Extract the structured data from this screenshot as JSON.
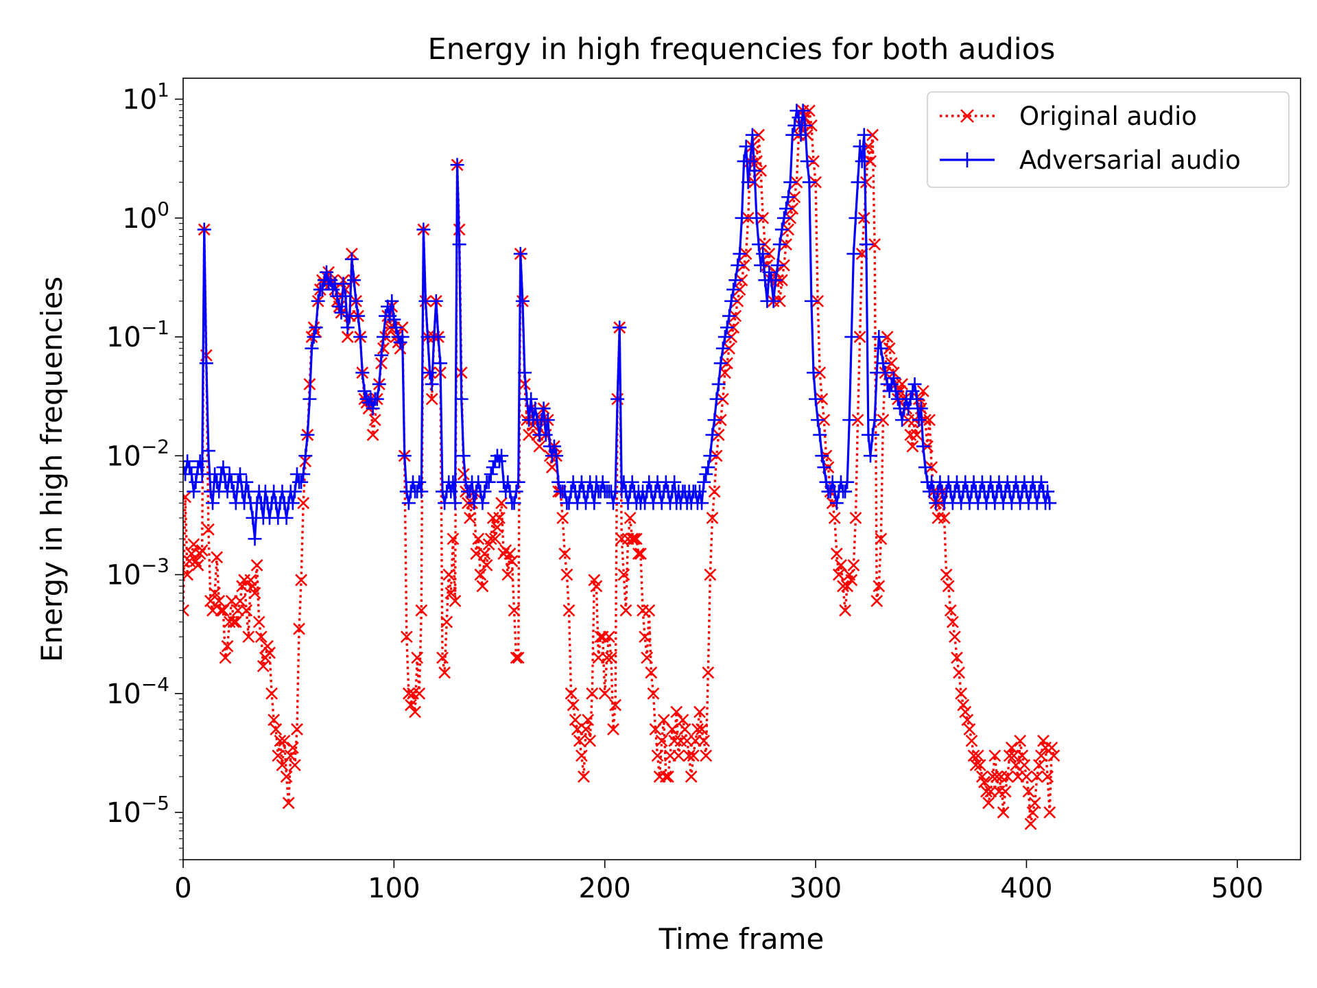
{
  "chart_data": {
    "type": "line",
    "title": "Energy in high frequencies for both audios",
    "xlabel": "Time frame",
    "ylabel": "Energy in high frequencies",
    "xlim": [
      0,
      530
    ],
    "ylim": [
      4e-06,
      15
    ],
    "yscale": "log",
    "grid": false,
    "legend_position": "top-right",
    "x_ticks": [
      0,
      100,
      200,
      300,
      400,
      500
    ],
    "x_tick_labels": [
      "0",
      "100",
      "200",
      "300",
      "400",
      "500"
    ],
    "y_ticks": [
      1e-05,
      0.0001,
      0.001,
      0.01,
      0.1,
      1,
      10
    ],
    "y_tick_labels": [
      {
        "base": "10",
        "exp": "−5"
      },
      {
        "base": "10",
        "exp": "−4"
      },
      {
        "base": "10",
        "exp": "−3"
      },
      {
        "base": "10",
        "exp": "−2"
      },
      {
        "base": "10",
        "exp": "−1"
      },
      {
        "base": "10",
        "exp": "0"
      },
      {
        "base": "10",
        "exp": "1"
      }
    ],
    "x_start": 0,
    "x_step": 1,
    "series": [
      {
        "name": "Original audio",
        "color": "#ff0000",
        "line_style": "dotted",
        "marker": "x",
        "values": [
          0.0005,
          0.0045,
          0.001,
          0.0013,
          0.0015,
          0.0018,
          0.0013,
          0.0012,
          0.0015,
          0.0016,
          0.8,
          0.07,
          0.0024,
          0.0006,
          0.0005,
          0.0007,
          0.0014,
          0.0006,
          0.0005,
          0.0005,
          0.0002,
          0.00025,
          0.0004,
          0.0006,
          0.0004,
          0.0004,
          0.0005,
          0.0006,
          0.0008,
          0.0009,
          0.0005,
          0.0003,
          0.0009,
          0.0008,
          0.0007,
          0.0012,
          0.0004,
          0.0003,
          0.00017,
          0.0002,
          0.00025,
          0.00022,
          0.0001,
          6e-05,
          5e-05,
          3e-05,
          4e-05,
          2.5e-05,
          4e-05,
          2e-05,
          1.2e-05,
          3e-05,
          3.5e-05,
          2.5e-05,
          5e-05,
          0.00035,
          0.0009,
          0.004,
          0.009,
          0.015,
          0.04,
          0.1,
          0.12,
          0.11,
          0.2,
          0.25,
          0.3,
          0.28,
          0.32,
          0.35,
          0.28,
          0.3,
          0.25,
          0.2,
          0.18,
          0.16,
          0.3,
          0.25,
          0.1,
          0.15,
          0.5,
          0.3,
          0.2,
          0.15,
          0.1,
          0.05,
          0.03,
          0.028,
          0.025,
          0.03,
          0.015,
          0.02,
          0.03,
          0.04,
          0.06,
          0.08,
          0.1,
          0.15,
          0.12,
          0.18,
          0.12,
          0.1,
          0.09,
          0.08,
          0.12,
          0.01,
          0.0003,
          0.0001,
          8e-05,
          0.0001,
          7e-05,
          0.0002,
          0.0001,
          0.0005,
          0.8,
          0.2,
          0.1,
          0.05,
          0.03,
          0.1,
          0.2,
          0.1,
          0.05,
          0.0002,
          0.00015,
          0.0004,
          0.001,
          0.0007,
          0.002,
          0.0006,
          2.8,
          0.8,
          0.05,
          0.007,
          0.005,
          0.004,
          0.003,
          0.004,
          0.005,
          0.0015,
          0.002,
          0.001,
          0.0008,
          0.0015,
          0.0012,
          0.0018,
          0.002,
          0.003,
          0.002,
          0.0025,
          0.003,
          0.004,
          0.0015,
          0.0016,
          0.001,
          0.0015,
          0.0013,
          0.0005,
          0.0002,
          0.0002,
          0.5,
          0.2,
          0.04,
          0.02,
          0.015,
          0.025,
          0.018,
          0.02,
          0.015,
          0.012,
          0.02,
          0.025,
          0.015,
          0.02,
          0.01,
          0.008,
          0.012,
          0.01,
          0.005,
          0.005,
          0.003,
          0.0015,
          0.001,
          0.0005,
          0.0001,
          8e-05,
          6e-05,
          5e-05,
          4e-05,
          3e-05,
          2e-05,
          5e-05,
          6e-05,
          4e-05,
          0.0001,
          0.0009,
          0.0008,
          0.0002,
          0.0003,
          0.0003,
          0.0001,
          0.0002,
          0.0003,
          0.0002,
          5e-05,
          8e-05,
          0.03,
          0.12,
          0.002,
          0.001,
          0.0005,
          0.002,
          0.003,
          0.002,
          0.002,
          0.002,
          0.0015,
          0.0015,
          0.0005,
          0.0003,
          0.0002,
          0.0005,
          0.00015,
          0.0001,
          5e-05,
          3e-05,
          2e-05,
          4e-05,
          6e-05,
          2e-05,
          2e-05,
          3e-05,
          5e-05,
          4e-05,
          7e-05,
          3e-05,
          4e-05,
          6e-05,
          5e-05,
          4e-05,
          3e-05,
          2e-05,
          3e-05,
          4e-05,
          5e-05,
          7e-05,
          5e-05,
          4e-05,
          3e-05,
          0.00015,
          0.001,
          0.003,
          0.005,
          0.01,
          0.015,
          0.02,
          0.03,
          0.05,
          0.06,
          0.08,
          0.1,
          0.12,
          0.15,
          0.2,
          0.25,
          0.3,
          0.4,
          0.5,
          1,
          3,
          4,
          2,
          3,
          5,
          2.5,
          1,
          0.6,
          0.4,
          0.5,
          0.3,
          0.2,
          0.35,
          0.3,
          0.2,
          0.3,
          0.4,
          0.6,
          0.8,
          1,
          1.2,
          1.5,
          2,
          5,
          6,
          8,
          7,
          5,
          8,
          6,
          3,
          2,
          0.2,
          0.05,
          0.03,
          0.02,
          0.01,
          0.008,
          0.005,
          0.004,
          0.003,
          0.0015,
          0.001,
          0.0012,
          0.0008,
          0.0005,
          0.0008,
          0.001,
          0.0009,
          0.0012,
          0.003,
          0.02,
          0.1,
          0.5,
          1,
          2,
          4,
          3,
          5,
          0.6,
          0.0006,
          0.0008,
          0.002,
          0.02,
          0.05,
          0.1,
          0.08,
          0.06,
          0.05,
          0.04,
          0.03,
          0.035,
          0.04,
          0.03,
          0.025,
          0.02,
          0.015,
          0.012,
          0.02,
          0.015,
          0.03,
          0.025,
          0.035,
          0.02,
          0.012,
          0.02,
          0.008,
          0.005,
          0.004,
          0.003,
          0.004,
          0.005,
          0.003,
          0.001,
          0.0008,
          0.0005,
          0.0004,
          0.0003,
          0.0002,
          0.00015,
          0.0001,
          8e-05,
          7e-05,
          6e-05,
          5e-05,
          4e-05,
          3e-05,
          2.5e-05,
          3e-05,
          2.5e-05,
          2e-05,
          1.8e-05,
          1.5e-05,
          1.2e-05,
          1.5e-05,
          2e-05,
          3e-05,
          2e-05,
          1.5e-05,
          2e-05,
          1e-05,
          1.5e-05,
          2e-05,
          3e-05,
          3.5e-05,
          3e-05,
          2.5e-05,
          2e-05,
          4e-05,
          3e-05,
          2.5e-05,
          2e-05,
          1.5e-05,
          8e-06,
          1e-05,
          1.2e-05,
          2e-05,
          2.5e-05,
          3e-05,
          4e-05,
          3.5e-05,
          2e-05,
          1e-05,
          3.5e-05,
          3e-05
        ]
      },
      {
        "name": "Adversarial audio",
        "color": "#0000ff",
        "line_style": "solid",
        "marker": "+",
        "values": [
          0.008,
          0.007,
          0.009,
          0.008,
          0.007,
          0.005,
          0.006,
          0.008,
          0.009,
          0.007,
          0.8,
          0.06,
          0.011,
          0.005,
          0.004,
          0.007,
          0.006,
          0.005,
          0.007,
          0.008,
          0.006,
          0.005,
          0.007,
          0.006,
          0.005,
          0.004,
          0.006,
          0.007,
          0.005,
          0.004,
          0.006,
          0.005,
          0.004,
          0.003,
          0.002,
          0.004,
          0.005,
          0.004,
          0.003,
          0.005,
          0.004,
          0.003,
          0.004,
          0.005,
          0.004,
          0.003,
          0.004,
          0.005,
          0.004,
          0.003,
          0.004,
          0.005,
          0.004,
          0.005,
          0.007,
          0.006,
          0.006,
          0.007,
          0.01,
          0.015,
          0.03,
          0.08,
          0.1,
          0.12,
          0.2,
          0.25,
          0.25,
          0.3,
          0.35,
          0.28,
          0.3,
          0.25,
          0.28,
          0.22,
          0.18,
          0.16,
          0.28,
          0.22,
          0.12,
          0.15,
          0.45,
          0.3,
          0.2,
          0.15,
          0.1,
          0.05,
          0.035,
          0.03,
          0.028,
          0.03,
          0.025,
          0.03,
          0.03,
          0.04,
          0.07,
          0.1,
          0.15,
          0.18,
          0.15,
          0.2,
          0.14,
          0.12,
          0.1,
          0.09,
          0.1,
          0.01,
          0.005,
          0.004,
          0.005,
          0.006,
          0.005,
          0.005,
          0.006,
          0.005,
          0.8,
          0.2,
          0.1,
          0.05,
          0.04,
          0.1,
          0.2,
          0.1,
          0.06,
          0.005,
          0.004,
          0.005,
          0.006,
          0.005,
          0.006,
          0.004,
          2.8,
          0.6,
          0.03,
          0.01,
          0.006,
          0.005,
          0.005,
          0.006,
          0.004,
          0.005,
          0.006,
          0.005,
          0.004,
          0.005,
          0.006,
          0.006,
          0.007,
          0.008,
          0.009,
          0.01,
          0.009,
          0.01,
          0.006,
          0.005,
          0.006,
          0.005,
          0.004,
          0.004,
          0.005,
          0.006,
          0.5,
          0.2,
          0.05,
          0.03,
          0.02,
          0.03,
          0.02,
          0.025,
          0.02,
          0.015,
          0.02,
          0.025,
          0.015,
          0.02,
          0.012,
          0.01,
          0.012,
          0.01,
          0.006,
          0.005,
          0.005,
          0.005,
          0.004,
          0.004,
          0.005,
          0.006,
          0.005,
          0.004,
          0.005,
          0.006,
          0.005,
          0.004,
          0.005,
          0.006,
          0.005,
          0.004,
          0.006,
          0.005,
          0.005,
          0.006,
          0.005,
          0.005,
          0.005,
          0.005,
          0.004,
          0.005,
          0.03,
          0.12,
          0.005,
          0.006,
          0.005,
          0.004,
          0.005,
          0.006,
          0.005,
          0.004,
          0.005,
          0.004,
          0.005,
          0.004,
          0.005,
          0.006,
          0.005,
          0.004,
          0.005,
          0.006,
          0.005,
          0.004,
          0.005,
          0.006,
          0.005,
          0.004,
          0.005,
          0.006,
          0.004,
          0.005,
          0.004,
          0.005,
          0.005,
          0.004,
          0.005,
          0.004,
          0.005,
          0.005,
          0.004,
          0.005,
          0.004,
          0.006,
          0.007,
          0.008,
          0.01,
          0.015,
          0.02,
          0.03,
          0.04,
          0.06,
          0.08,
          0.1,
          0.12,
          0.15,
          0.2,
          0.25,
          0.3,
          0.4,
          0.5,
          1,
          3,
          4,
          2,
          3,
          5,
          2.5,
          1,
          0.6,
          0.4,
          0.5,
          0.3,
          0.2,
          0.35,
          0.3,
          0.2,
          0.3,
          0.4,
          0.6,
          0.8,
          1,
          1.2,
          1.5,
          2,
          5,
          6,
          8,
          7,
          5,
          8,
          6,
          3,
          2,
          0.2,
          0.05,
          0.03,
          0.02,
          0.015,
          0.01,
          0.008,
          0.006,
          0.005,
          0.005,
          0.006,
          0.005,
          0.004,
          0.005,
          0.006,
          0.005,
          0.005,
          0.006,
          0.02,
          0.1,
          0.5,
          1,
          2,
          4,
          3,
          5,
          0.6,
          0.015,
          0.01,
          0.015,
          0.02,
          0.05,
          0.1,
          0.08,
          0.06,
          0.05,
          0.04,
          0.035,
          0.04,
          0.045,
          0.035,
          0.03,
          0.025,
          0.02,
          0.025,
          0.03,
          0.025,
          0.03,
          0.035,
          0.04,
          0.03,
          0.02,
          0.025,
          0.012,
          0.008,
          0.006,
          0.005,
          0.006,
          0.005,
          0.004,
          0.005,
          0.006,
          0.005,
          0.004,
          0.005,
          0.006,
          0.005,
          0.004,
          0.005,
          0.006,
          0.005,
          0.004,
          0.005,
          0.006,
          0.005,
          0.004,
          0.005,
          0.006,
          0.005,
          0.004,
          0.005,
          0.006,
          0.005,
          0.004,
          0.005,
          0.006,
          0.005,
          0.004,
          0.005,
          0.006,
          0.005,
          0.004,
          0.005,
          0.006,
          0.005,
          0.004,
          0.005,
          0.006,
          0.005,
          0.004,
          0.005,
          0.006,
          0.005,
          0.004,
          0.005,
          0.006,
          0.005,
          0.004,
          0.005,
          0.006,
          0.005,
          0.004,
          0.005,
          0.004
        ]
      }
    ]
  }
}
